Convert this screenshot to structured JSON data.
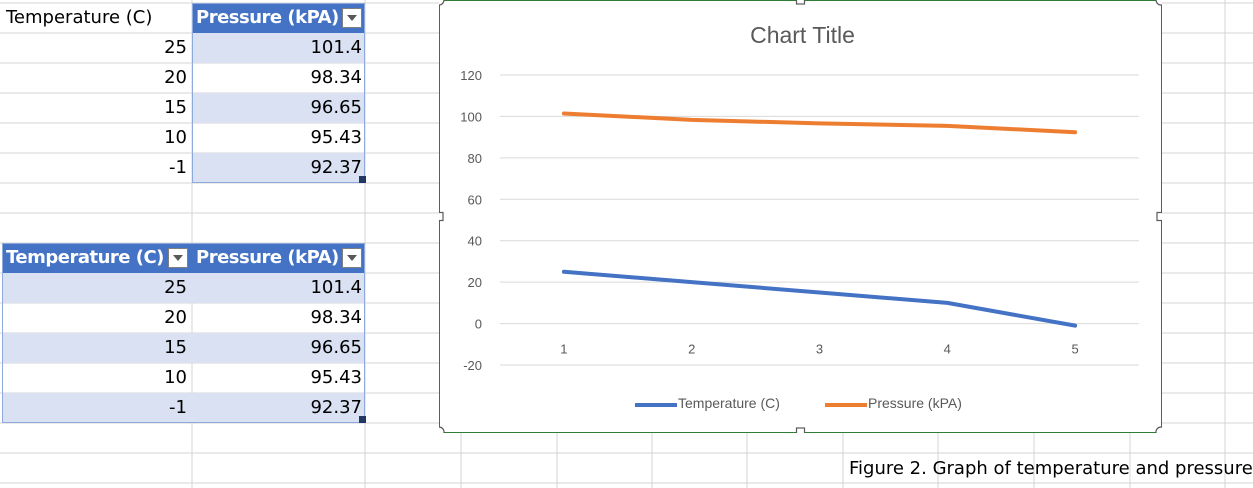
{
  "sheet": {
    "plain_header_label": "Temperature (C)",
    "table1": {
      "header": "Pressure (kPA)",
      "rows": [
        {
          "temp": "25",
          "pressure": "101.4"
        },
        {
          "temp": "20",
          "pressure": "98.34"
        },
        {
          "temp": "15",
          "pressure": "96.65"
        },
        {
          "temp": "10",
          "pressure": "95.43"
        },
        {
          "temp": "-1",
          "pressure": "92.37"
        }
      ]
    },
    "table2": {
      "headers": [
        "Temperature (C)",
        "Pressure (kPA)"
      ],
      "rows": [
        {
          "temp": "25",
          "pressure": "101.4"
        },
        {
          "temp": "20",
          "pressure": "98.34"
        },
        {
          "temp": "15",
          "pressure": "96.65"
        },
        {
          "temp": "10",
          "pressure": "95.43"
        },
        {
          "temp": "-1",
          "pressure": "92.37"
        }
      ]
    },
    "caption": "Figure 2. Graph of temperature and pressure",
    "colors": {
      "table_header": "#4472c4",
      "band": "#d9e1f2",
      "grid": "#d4d4d4"
    }
  },
  "chart_data": {
    "type": "line",
    "title": "Chart Title",
    "x": [
      1,
      2,
      3,
      4,
      5
    ],
    "series": [
      {
        "name": "Temperature (C)",
        "values": [
          25,
          20,
          15,
          10,
          -1
        ],
        "color": "#4472c4"
      },
      {
        "name": "Pressure (kPA)",
        "values": [
          101.4,
          98.34,
          96.65,
          95.43,
          92.37
        ],
        "color": "#ed7d31"
      }
    ],
    "yticks": [
      -20,
      0,
      20,
      40,
      60,
      80,
      100,
      120
    ],
    "xticks": [
      "1",
      "2",
      "3",
      "4",
      "5"
    ],
    "ylim": [
      -20,
      120
    ],
    "grid": true,
    "legend": "bottom"
  }
}
